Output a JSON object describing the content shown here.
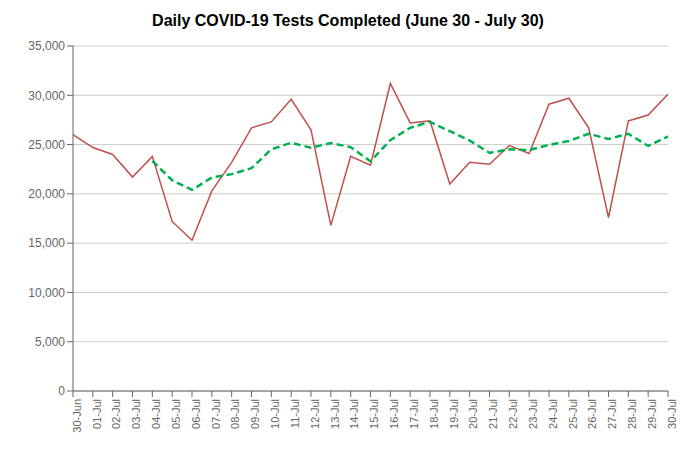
{
  "chart_data": {
    "type": "line",
    "title": "Daily COVID-19 Tests Completed (June 30 - July 30)",
    "categories": [
      "30-Jun",
      "01-Jul",
      "02-Jul",
      "03-Jul",
      "04-Jul",
      "05-Jul",
      "06-Jul",
      "07-Jul",
      "08-Jul",
      "09-Jul",
      "10-Jul",
      "11-Jul",
      "12-Jul",
      "13-Jul",
      "14-Jul",
      "15-Jul",
      "16-Jul",
      "17-Jul",
      "18-Jul",
      "19-Jul",
      "20-Jul",
      "21-Jul",
      "22-Jul",
      "23-Jul",
      "24-Jul",
      "25-Jul",
      "26-Jul",
      "27-Jul",
      "28-Jul",
      "29-Jul",
      "30-Jul"
    ],
    "series": [
      {
        "color": "#c0504d",
        "line_style": "solid",
        "values": [
          26000,
          24700,
          24000,
          21700,
          23800,
          17200,
          15300,
          20300,
          23200,
          26700,
          27300,
          29600,
          26500,
          16800,
          23800,
          22900,
          31200,
          27200,
          27400,
          21000,
          23200,
          23000,
          24900,
          24100,
          29100,
          29700,
          26700,
          17600,
          27400,
          28000,
          30100
        ]
      },
      {
        "color": "#00b050",
        "line_style": "dashed",
        "values": [
          null,
          null,
          null,
          null,
          23340,
          21380,
          20400,
          21660,
          22000,
          22600,
          24520,
          25180,
          24680,
          25160,
          24740,
          23300,
          25440,
          26700,
          27300,
          26360,
          25400,
          24160,
          24520,
          24440,
          24960,
          25360,
          26100,
          25560,
          26100,
          24860,
          25820
        ]
      }
    ],
    "ylim": [
      0,
      35000
    ],
    "yticks": [
      0,
      {
        "value": 5000,
        "label": "5,000"
      },
      {
        "value": 10000,
        "label": "10,000"
      },
      {
        "value": 15000,
        "label": "15,000"
      },
      {
        "value": 20000,
        "label": "20,000"
      },
      {
        "value": 25000,
        "label": "25,000"
      },
      {
        "value": 30000,
        "label": "30,000"
      },
      {
        "value": 35000,
        "label": "35,000"
      }
    ],
    "grid": true
  }
}
